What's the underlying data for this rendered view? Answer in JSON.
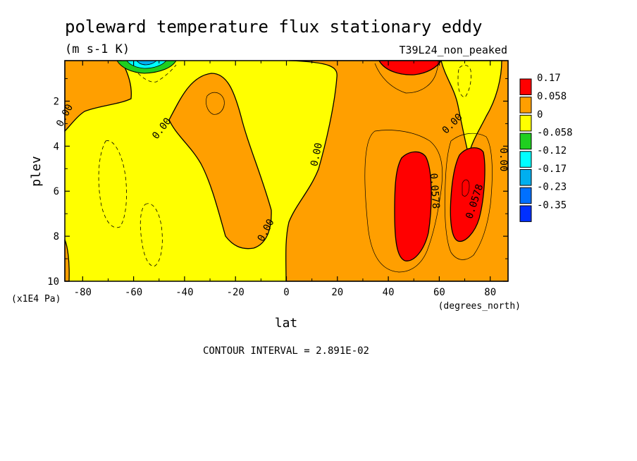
{
  "chart_data": {
    "type": "heatmap",
    "title": "poleward temperature flux stationary eddy",
    "units": "(m s-1 K)",
    "run_label": "T39L24_non_peaked",
    "xlabel": "lat",
    "x_units": "(degrees_north)",
    "ylabel": "plev",
    "y_units": "(x1E4 Pa)",
    "xlim": [
      -87,
      87
    ],
    "ylim": [
      10,
      0.2
    ],
    "x_ticks": [
      "-80",
      "-60",
      "-40",
      "-20",
      "0",
      "20",
      "40",
      "60",
      "80"
    ],
    "y_ticks": [
      "2",
      "4",
      "6",
      "8",
      "10"
    ],
    "contour_interval": "CONTOUR INTERVAL = 2.891E-02",
    "legend": [
      {
        "label": "0.17",
        "color": "#ff0000"
      },
      {
        "label": "0.058",
        "color": "#ff9f00"
      },
      {
        "label": "0",
        "color": "#ffff00"
      },
      {
        "label": "-0.058",
        "color": "#1fcf1f"
      },
      {
        "label": "-0.12",
        "color": "#00ffff"
      },
      {
        "label": "-0.17",
        "color": "#00afef"
      },
      {
        "label": "-0.23",
        "color": "#0070ff"
      },
      {
        "label": "-0.35",
        "color": "#0030ff"
      }
    ],
    "contour_labels": [
      {
        "text": "0.00",
        "lat": -86,
        "plev": 2.7
      },
      {
        "text": "0.00",
        "lat": -48,
        "plev": 3.3
      },
      {
        "text": "0.00",
        "lat": -7,
        "plev": 7.8
      },
      {
        "text": "0.00",
        "lat": 13,
        "plev": 4.4
      },
      {
        "text": "0.0578",
        "lat": 57,
        "plev": 6.0
      },
      {
        "text": "0.00",
        "lat": 66,
        "plev": 3.1
      },
      {
        "text": "0.0578",
        "lat": 75,
        "plev": 6.5
      },
      {
        "text": "0.00",
        "lat": 84,
        "plev": 4.6
      }
    ]
  }
}
